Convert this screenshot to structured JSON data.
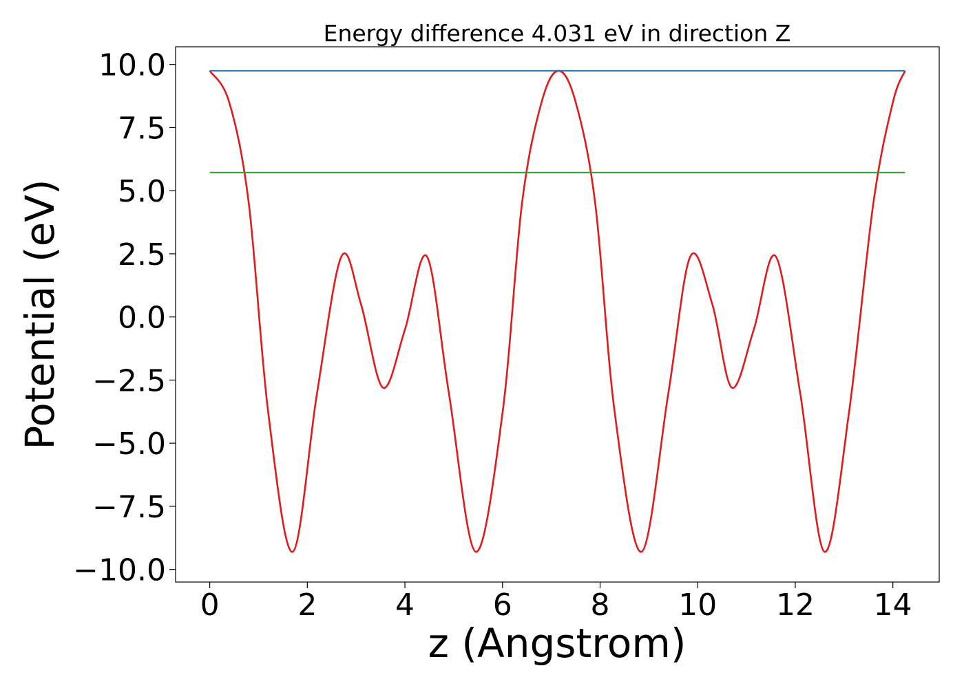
{
  "chart_data": {
    "type": "line",
    "title": "Energy difference 4.031 eV in direction Z",
    "xlabel": "z (Angstrom)",
    "ylabel": "Potential (eV)",
    "xlim": [
      -0.7,
      14.95
    ],
    "ylim": [
      -10.5,
      10.7
    ],
    "xticks": [
      0,
      2,
      4,
      6,
      8,
      10,
      12,
      14
    ],
    "xtick_labels": [
      "0",
      "2",
      "4",
      "6",
      "8",
      "10",
      "12",
      "14"
    ],
    "yticks": [
      10.0,
      7.5,
      5.0,
      2.5,
      0.0,
      -2.5,
      -5.0,
      -7.5,
      -10.0
    ],
    "ytick_labels": [
      "10.0",
      "7.5",
      "5.0",
      "2.5",
      "0.0",
      "−2.5",
      "−5.0",
      "−7.5",
      "−10.0"
    ],
    "grid": false,
    "legend": "none",
    "series": [
      {
        "kind": "curve",
        "color": "#e31a1c",
        "x": [
          0.0,
          0.4,
          0.8,
          1.2,
          1.7,
          2.2,
          2.7,
          3.1,
          3.55,
          4.0,
          4.45,
          4.9,
          5.45,
          6.0,
          6.4,
          6.8,
          7.15,
          7.5,
          7.9,
          8.3,
          8.85,
          9.4,
          9.85,
          10.3,
          10.7,
          11.15,
          11.6,
          12.1,
          12.6,
          13.1,
          13.6,
          14.0,
          14.25
        ],
        "y": [
          9.75,
          8.5,
          4.5,
          -3.8,
          -9.3,
          -3.0,
          2.4,
          0.5,
          -2.8,
          -0.5,
          2.4,
          -3.0,
          -9.3,
          -3.8,
          4.5,
          8.5,
          9.75,
          8.5,
          4.5,
          -3.8,
          -9.3,
          -3.0,
          2.4,
          0.5,
          -2.8,
          -0.5,
          2.4,
          -3.0,
          -9.3,
          -3.8,
          4.5,
          8.5,
          9.75
        ]
      },
      {
        "kind": "hline",
        "color": "#1f77b4",
        "y": 9.75,
        "x_range": [
          0.0,
          14.25
        ]
      },
      {
        "kind": "hline",
        "color": "#2ca02c",
        "y": 5.72,
        "x_range": [
          0.0,
          14.25
        ]
      }
    ]
  }
}
